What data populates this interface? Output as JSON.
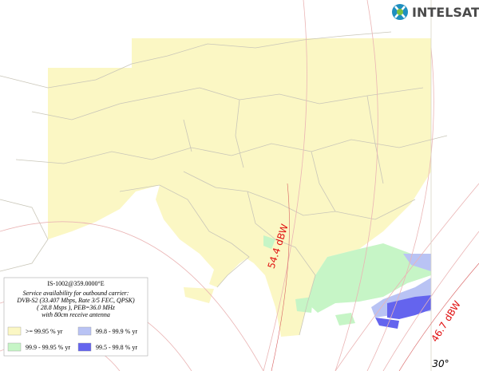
{
  "header": {
    "logo": "INTELSAT"
  },
  "map": {
    "contours": [
      "54.4 dBW",
      "46.7 dBW"
    ],
    "longitude_label": "30°"
  },
  "legend": {
    "title": "IS-1002@359.0000°E",
    "description": [
      "Service availability for outbound carrier:",
      "DVB-S2 (33.407 Mbps, Rate 3/5 FEC, QPSK)",
      "( 28.8 Msps ), PEB=36.0 MHz",
      "with 80cm receive antenna"
    ],
    "items": [
      {
        "label": ">= 99.95 % yr",
        "color": "#fbf7c4"
      },
      {
        "label": "99.8 - 99.9 % yr",
        "color": "#b9c3f4"
      },
      {
        "label": "99.9 - 99.95 % yr",
        "color": "#c6f5c6"
      },
      {
        "label": "99.5 - 99.8 % yr",
        "color": "#6464ee"
      }
    ]
  }
}
